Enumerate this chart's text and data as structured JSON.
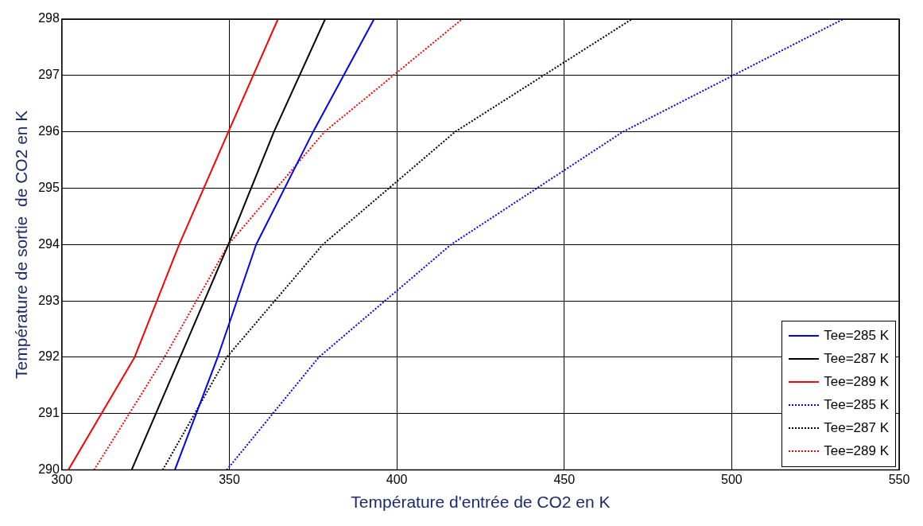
{
  "chart_data": {
    "type": "line",
    "xlabel": "Température d'entrée de CO2 en K",
    "ylabel": "Température de sortie  de CO2 en K",
    "xlim": [
      300,
      550
    ],
    "xticks": [
      300,
      350,
      400,
      450,
      500,
      550
    ],
    "ylim": [
      290,
      298
    ],
    "yticks": [
      290,
      291,
      292,
      293,
      294,
      295,
      296,
      297,
      298
    ],
    "grid": true,
    "legend": "bottom right",
    "series": [
      {
        "name": "Tee=285 K",
        "color": "#0000ff",
        "line_style": "solid",
        "x": [
          333.7,
          346.5,
          358,
          375,
          393.2
        ],
        "values": [
          290,
          292,
          294,
          296,
          298
        ]
      },
      {
        "name": "Tee=287 K",
        "color": "#000000",
        "line_style": "solid",
        "x": [
          320.8,
          335.3,
          349.7,
          363.3,
          378.6
        ],
        "values": [
          290,
          292,
          294,
          296,
          298
        ]
      },
      {
        "name": "Tee=289 K",
        "color": "#ff0000",
        "line_style": "solid",
        "x": [
          301.9,
          321.7,
          335,
          349.7,
          364.5
        ],
        "values": [
          290,
          292,
          294,
          296,
          298
        ]
      },
      {
        "name": "Tee=285 K",
        "color": "#0000ff",
        "line_style": "dotted",
        "x": [
          349.2,
          376.7,
          416.2,
          467.5,
          533.3
        ],
        "values": [
          290,
          292,
          294,
          296,
          298
        ]
      },
      {
        "name": "Tee=287 K",
        "color": "#000000",
        "line_style": "dotted",
        "x": [
          330.1,
          349.2,
          377.9,
          417.4,
          470.2
        ],
        "values": [
          290,
          292,
          294,
          296,
          298
        ]
      },
      {
        "name": "Tee=289 K",
        "color": "#ff0000",
        "line_style": "dotted",
        "x": [
          309.6,
          330.6,
          349.7,
          378.4,
          419.5
        ],
        "values": [
          290,
          292,
          294,
          296,
          298
        ]
      }
    ]
  }
}
